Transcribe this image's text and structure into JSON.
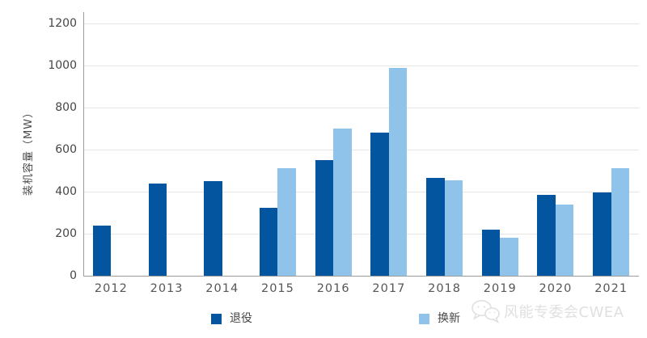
{
  "chart_data": {
    "type": "bar",
    "title": "",
    "categories": [
      "2012",
      "2013",
      "2014",
      "2015",
      "2016",
      "2017",
      "2018",
      "2019",
      "2020",
      "2021"
    ],
    "series": [
      {
        "name": "退役",
        "key": "retired",
        "color": "#03559F",
        "values": [
          240,
          440,
          450,
          325,
          550,
          680,
          465,
          220,
          385,
          395
        ]
      },
      {
        "name": "换新",
        "key": "renewal",
        "color": "#8FC3E9",
        "values": [
          null,
          null,
          null,
          510,
          700,
          990,
          455,
          180,
          340,
          510
        ]
      }
    ],
    "xlabel": "",
    "ylabel": "装机容量（MW）",
    "ylim": [
      0,
      1200
    ],
    "ytick_step": 200,
    "grid": true,
    "legend_position": "bottom"
  },
  "watermark": {
    "label": "风能专委会CWEA",
    "icon": "wechat-icon"
  },
  "style": {
    "grid_color": "#E5E5E5",
    "axis_color": "#9C9C9C",
    "tick_label_color": "#454545",
    "watermark_color": "#E0E0E0",
    "background": "#FFFFFF"
  }
}
